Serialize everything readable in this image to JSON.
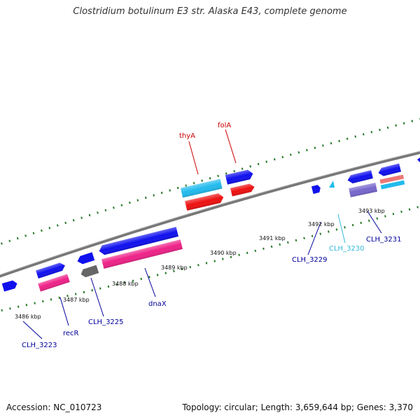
{
  "header": {
    "title": "Clostridium botulinum E3 str. Alaska E43, complete genome"
  },
  "footer": {
    "accession": "Accession: NC_010723",
    "summary": "Topology: circular; Length: 3,659,644 bp; Genes: 3,370"
  },
  "scale_labels": [
    "3486 kbp",
    "3487 kbp",
    "3488 kbp",
    "3489 kbp",
    "3490 kbp",
    "3491 kbp",
    "3492 kbp",
    "3493 kbp"
  ],
  "gene_labels": [
    {
      "text": "thyA",
      "color": "#cc0000"
    },
    {
      "text": "folA",
      "color": "#cc0000"
    },
    {
      "text": "CLH_3223",
      "color": "#000099"
    },
    {
      "text": "recR",
      "color": "#000099"
    },
    {
      "text": "CLH_3225",
      "color": "#000099"
    },
    {
      "text": "dnaX",
      "color": "#000099"
    },
    {
      "text": "CLH_3229",
      "color": "#000099"
    },
    {
      "text": "CLH_3230",
      "color": "#33bbdd"
    },
    {
      "text": "CLH_3231",
      "color": "#000099"
    }
  ],
  "colors": {
    "backbone": "#777777",
    "tick": "#2a7a2a",
    "gene_blue": "#1010ee",
    "gene_cyan": "#22bbee",
    "gene_red": "#ee1111",
    "gene_magenta": "#ee2288",
    "gene_gray": "#666666",
    "gene_purple": "#7766cc",
    "gene_salmon": "#ee7777"
  }
}
